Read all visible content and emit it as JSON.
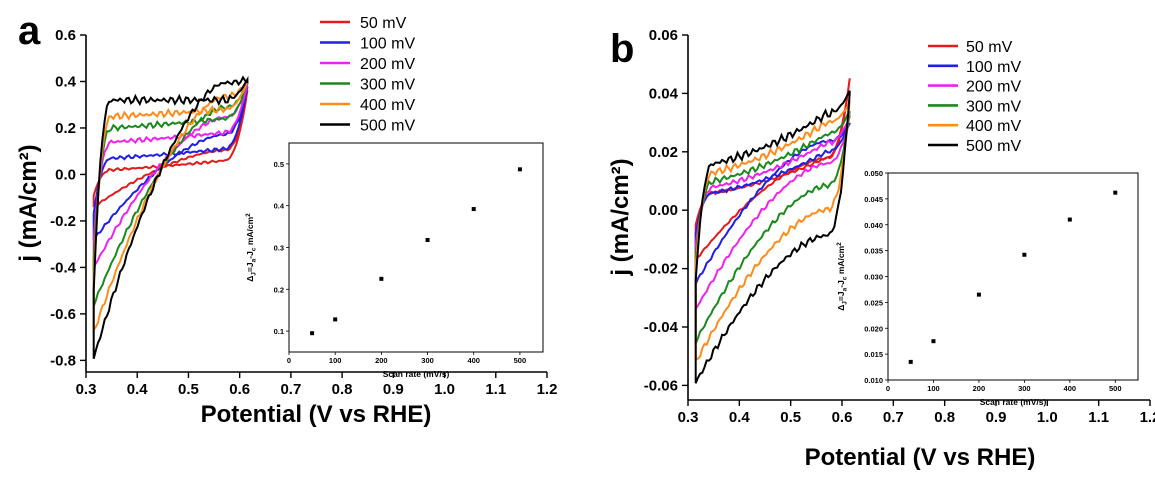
{
  "figure": {
    "panels": [
      {
        "panel_label": "a",
        "chart_data": {
          "type": "line",
          "title": "",
          "xlabel": "Potential (V vs RHE)",
          "ylabel": "j (mA/cm²)",
          "xlim": [
            0.3,
            1.2
          ],
          "ylim": [
            -0.85,
            0.6
          ],
          "xticks": [
            "0.3",
            "0.4",
            "0.5",
            "0.6",
            "0.7",
            "0.8",
            "0.9",
            "1.0",
            "1.1",
            "1.2"
          ],
          "yticks": [
            "-0.8",
            "-0.6",
            "-0.4",
            "-0.2",
            "0.0",
            "0.2",
            "0.4",
            "0.6"
          ],
          "legend_position": "top-right",
          "series": [
            {
              "name": "50 mV",
              "color": "#e41a1c",
              "x_range": [
                0.315,
                0.615
              ],
              "cathodic_start": -0.14,
              "anodic_start": -0.09,
              "plateau": [
                0.02,
                0.05,
                0.06
              ],
              "vertex": [
                0.36,
                0.2
              ]
            },
            {
              "name": "100 mV",
              "color": "#1f1fe6",
              "x_range": [
                0.315,
                0.615
              ],
              "cathodic_start": -0.28,
              "anodic_start": -0.17,
              "plateau": [
                0.07,
                0.1,
                0.11
              ],
              "vertex": [
                0.38,
                0.25
              ]
            },
            {
              "name": "200 mV",
              "color": "#ee22ee",
              "x_range": [
                0.315,
                0.615
              ],
              "cathodic_start": -0.4,
              "anodic_start": -0.28,
              "plateau": [
                0.14,
                0.17,
                0.18
              ],
              "vertex": [
                0.39,
                0.3
              ]
            },
            {
              "name": "300 mV",
              "color": "#1a8a1a",
              "x_range": [
                0.315,
                0.615
              ],
              "cathodic_start": -0.56,
              "anodic_start": -0.36,
              "plateau": [
                0.2,
                0.23,
                0.24
              ],
              "vertex": [
                0.4,
                0.33
              ]
            },
            {
              "name": "400 mV",
              "color": "#ff8c1a",
              "x_range": [
                0.315,
                0.615
              ],
              "cathodic_start": -0.68,
              "anodic_start": -0.44,
              "plateau": [
                0.25,
                0.27,
                0.28
              ],
              "vertex": [
                0.4,
                0.36
              ]
            },
            {
              "name": "500 mV",
              "color": "#000000",
              "x_range": [
                0.315,
                0.615
              ],
              "cathodic_start": -0.79,
              "anodic_start": -0.5,
              "plateau": [
                0.32,
                0.32,
                0.32
              ],
              "vertex": [
                0.41,
                0.4
              ]
            }
          ]
        },
        "inset": {
          "type": "scatter",
          "xlabel": "Scan rate (mV/s)",
          "ylabel_main": "Δ",
          "ylabel_sub": "J",
          "ylabel_rest": "=J",
          "ylabel_sub_a": "a",
          "ylabel_dash": "-J",
          "ylabel_sub_c": "c",
          "ylabel_unit": " mA/cm",
          "ylabel_sup": "2",
          "xlim": [
            0,
            550
          ],
          "ylim": [
            0.05,
            0.55
          ],
          "xticks": [
            "0",
            "100",
            "200",
            "300",
            "400",
            "500"
          ],
          "yticks": [
            "0.1",
            "0.2",
            "0.3",
            "0.4",
            "0.5"
          ],
          "x": [
            50,
            100,
            200,
            300,
            400,
            500
          ],
          "y": [
            0.095,
            0.128,
            0.225,
            0.318,
            0.392,
            0.487
          ]
        }
      },
      {
        "panel_label": "b",
        "chart_data": {
          "type": "line",
          "title": "",
          "xlabel": "Potential (V vs RHE)",
          "ylabel": "j (mA/cm²)",
          "xlim": [
            0.3,
            1.2
          ],
          "ylim": [
            -0.065,
            0.06
          ],
          "xticks": [
            "0.3",
            "0.4",
            "0.5",
            "0.6",
            "0.7",
            "0.8",
            "0.9",
            "1.0",
            "1.1",
            "1.2"
          ],
          "yticks": [
            "-0.06",
            "-0.04",
            "-0.02",
            "0.00",
            "0.02",
            "0.04",
            "0.06"
          ],
          "legend_position": "top-right",
          "series": [
            {
              "name": "50 mV",
              "color": "#e41a1c",
              "x_range": [
                0.315,
                0.615
              ],
              "cathodic_start": -0.017,
              "anodic_start": -0.005,
              "plateau": [
                0.006,
                0.012,
                0.018
              ],
              "vertex": [
                0.045,
                0.028
              ]
            },
            {
              "name": "100 mV",
              "color": "#1f1fe6",
              "x_range": [
                0.315,
                0.615
              ],
              "cathodic_start": -0.025,
              "anodic_start": -0.008,
              "plateau": [
                0.006,
                0.013,
                0.02
              ],
              "vertex": [
                0.03,
                0.026
              ]
            },
            {
              "name": "200 mV",
              "color": "#ee22ee",
              "x_range": [
                0.315,
                0.615
              ],
              "cathodic_start": -0.034,
              "anodic_start": -0.012,
              "plateau": [
                0.008,
                0.016,
                0.023
              ],
              "vertex": [
                0.032,
                0.022
              ]
            },
            {
              "name": "300 mV",
              "color": "#1a8a1a",
              "x_range": [
                0.315,
                0.615
              ],
              "cathodic_start": -0.045,
              "anodic_start": -0.015,
              "plateau": [
                0.01,
                0.019,
                0.026
              ],
              "vertex": [
                0.034,
                0.018
              ]
            },
            {
              "name": "400 mV",
              "color": "#ff8c1a",
              "x_range": [
                0.315,
                0.615
              ],
              "cathodic_start": -0.052,
              "anodic_start": -0.019,
              "plateau": [
                0.013,
                0.022,
                0.03
              ],
              "vertex": [
                0.037,
                0.014
              ]
            },
            {
              "name": "500 mV",
              "color": "#000000",
              "x_range": [
                0.315,
                0.615
              ],
              "cathodic_start": -0.059,
              "anodic_start": -0.024,
              "plateau": [
                0.016,
                0.025,
                0.033
              ],
              "vertex": [
                0.041,
                0.01
              ]
            }
          ]
        },
        "inset": {
          "type": "scatter",
          "xlabel": "Scan rate (mV/s)",
          "ylabel_main": "Δ",
          "ylabel_sub": "J",
          "ylabel_rest": "=J",
          "ylabel_sub_a": "a",
          "ylabel_dash": "-J",
          "ylabel_sub_c": "c",
          "ylabel_unit": " mA/cm",
          "ylabel_sup": "2",
          "xlim": [
            0,
            550
          ],
          "ylim": [
            0.01,
            0.05
          ],
          "xticks": [
            "0",
            "100",
            "200",
            "300",
            "400",
            "500"
          ],
          "yticks": [
            "0.010",
            "0.015",
            "0.020",
            "0.025",
            "0.030",
            "0.035",
            "0.040",
            "0.045",
            "0.050"
          ],
          "x": [
            50,
            100,
            200,
            300,
            400,
            500
          ],
          "y": [
            0.0135,
            0.0175,
            0.0265,
            0.0342,
            0.041,
            0.0462
          ]
        }
      }
    ]
  }
}
